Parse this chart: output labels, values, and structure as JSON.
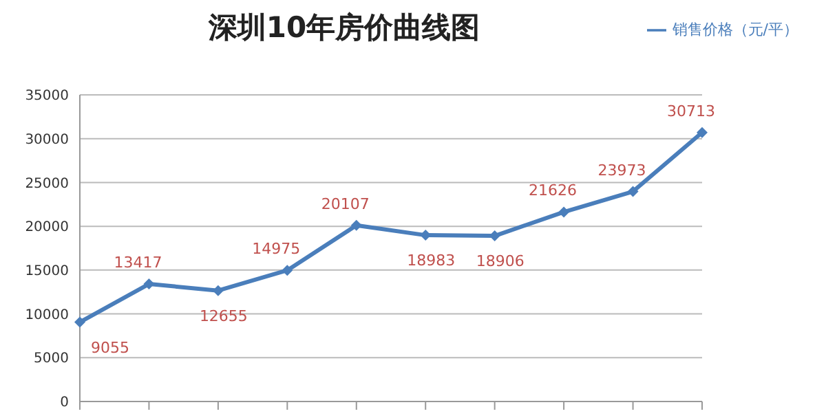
{
  "chart_data": {
    "type": "line",
    "title": "深圳10年房价曲线图",
    "categories": [
      null,
      null,
      null,
      null,
      null,
      null,
      null,
      null,
      null,
      null
    ],
    "series": [
      {
        "name": "销售价格（元/平）",
        "color": "#4a7ebb",
        "values": [
          9055,
          13417,
          12655,
          14975,
          20107,
          18983,
          18906,
          21626,
          23973,
          30713
        ]
      }
    ],
    "ylim": [
      0,
      35000
    ],
    "yticks": [
      0,
      5000,
      10000,
      15000,
      20000,
      25000,
      30000,
      35000
    ],
    "grid": "y",
    "legend": "top right",
    "marker": "diamond",
    "line_style": "solid",
    "data_labels": true
  }
}
